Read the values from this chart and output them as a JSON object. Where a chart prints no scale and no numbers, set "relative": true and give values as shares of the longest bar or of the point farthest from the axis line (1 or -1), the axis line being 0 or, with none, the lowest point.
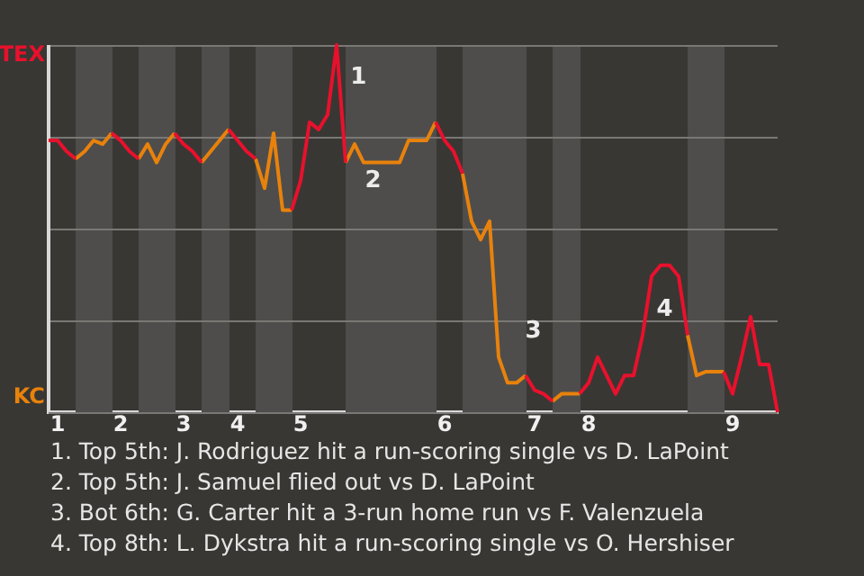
{
  "chart_data": {
    "type": "line",
    "relative": true,
    "categories": [
      null,
      "1",
      null,
      null,
      null,
      null,
      null,
      null,
      "2",
      null,
      null,
      null,
      null,
      null,
      null,
      "3",
      null,
      null,
      null,
      null,
      null,
      "4",
      null,
      null,
      null,
      null,
      null,
      null,
      "5",
      null,
      null,
      null,
      null,
      null,
      null,
      null,
      null,
      null,
      null,
      null,
      null,
      null,
      null,
      null,
      "6",
      null,
      null,
      null,
      null,
      null,
      null,
      null,
      null,
      null,
      "7",
      null,
      null,
      null,
      null,
      null,
      "8",
      null,
      null,
      null,
      null,
      null,
      null,
      null,
      null,
      null,
      null,
      null,
      null,
      null,
      null,
      null,
      "9",
      null,
      null,
      null,
      null,
      null
    ],
    "series": [
      {
        "color": "#e8112d",
        "values": [
          0.74,
          0.74,
          0.71,
          0.69,
          null,
          null,
          null,
          0.76,
          0.74,
          0.71,
          0.69,
          null,
          null,
          null,
          0.76,
          0.73,
          0.71,
          0.68,
          null,
          null,
          0.77,
          0.74,
          0.71,
          0.69,
          null,
          null,
          null,
          0.55,
          0.63,
          0.79,
          0.77,
          0.81,
          1,
          0.68,
          null,
          null,
          null,
          null,
          null,
          null,
          null,
          null,
          null,
          0.79,
          0.74,
          0.71,
          0.65,
          null,
          null,
          null,
          null,
          null,
          null,
          0.1,
          0.06,
          0.05,
          0.03,
          null,
          null,
          0.05,
          0.08,
          0.15,
          0.1,
          0.05,
          0.1,
          0.1,
          0.21,
          0.37,
          0.4,
          0.4,
          0.37,
          0.21,
          null,
          null,
          null,
          0.11,
          0.05,
          0.15,
          0.26,
          0.13,
          0.13,
          0
        ]
      },
      {
        "color": "#e8820c",
        "values": [
          null,
          null,
          null,
          0.69,
          0.71,
          0.74,
          0.73,
          0.76,
          null,
          null,
          0.69,
          0.73,
          0.68,
          0.73,
          0.76,
          null,
          null,
          0.68,
          0.71,
          0.74,
          0.77,
          null,
          null,
          0.69,
          0.61,
          0.76,
          0.55,
          0.55,
          null,
          null,
          null,
          null,
          null,
          0.68,
          0.73,
          0.68,
          0.68,
          0.68,
          0.68,
          0.68,
          0.74,
          0.74,
          0.74,
          0.79,
          null,
          null,
          0.65,
          0.52,
          0.47,
          0.52,
          0.15,
          0.08,
          0.08,
          0.1,
          null,
          null,
          0.03,
          0.05,
          0.05,
          0.05,
          null,
          null,
          null,
          null,
          null,
          null,
          null,
          null,
          null,
          null,
          null,
          0.21,
          0.1,
          0.11,
          0.11,
          0.11,
          null,
          null,
          null,
          null,
          null,
          null
        ]
      }
    ],
    "grid": "y",
    "legend": false,
    "marker": "none",
    "line_style": "solid",
    "annotations": [
      "TEX",
      "KC",
      "1",
      "2",
      "3",
      "4",
      "1. Top 5th: J. Rodriguez hit a run-scoring single vs D. LaPoint",
      "2. Top 5th: J. Samuel flied out vs D. LaPoint",
      "3. Bot 6th: G. Carter hit a 3-run home run vs F. Valenzuela",
      "4. Top 8th: L. Dykstra hit a run-scoring single vs O. Hershiser"
    ]
  }
}
